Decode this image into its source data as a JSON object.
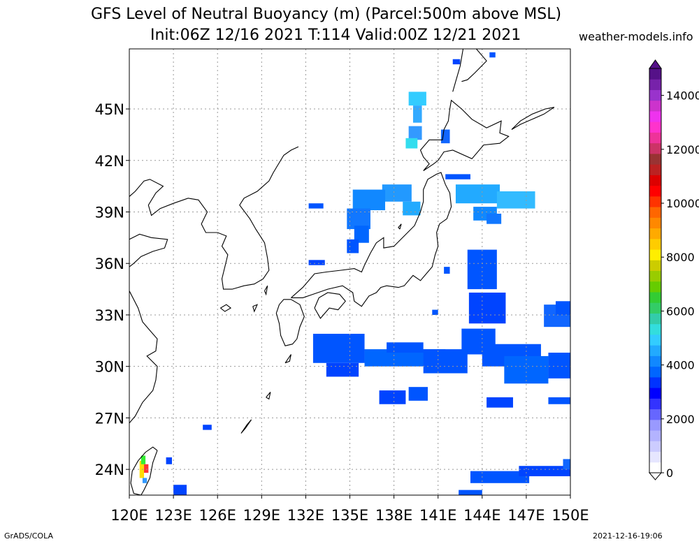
{
  "title": {
    "line1": "GFS Level of Neutral Buoyancy (m) (Parcel:500m above MSL)",
    "line2": "Init:06Z 12/16 2021 T:114 Valid:00Z 12/21 2021"
  },
  "site": "weather-models.info",
  "footer": {
    "left": "GrADS/COLA",
    "right": "2021-12-16-19:06"
  },
  "map": {
    "lon_range": [
      120,
      150
    ],
    "lat_range": [
      22.5,
      48.5
    ],
    "lon_ticks": [
      {
        "v": 120,
        "label": "120E"
      },
      {
        "v": 123,
        "label": "123E"
      },
      {
        "v": 126,
        "label": "126E"
      },
      {
        "v": 129,
        "label": "129E"
      },
      {
        "v": 132,
        "label": "132E"
      },
      {
        "v": 135,
        "label": "135E"
      },
      {
        "v": 138,
        "label": "138E"
      },
      {
        "v": 141,
        "label": "141E"
      },
      {
        "v": 144,
        "label": "144E"
      },
      {
        "v": 147,
        "label": "147E"
      },
      {
        "v": 150,
        "label": "150E"
      }
    ],
    "lat_ticks": [
      {
        "v": 24,
        "label": "24N"
      },
      {
        "v": 27,
        "label": "27N"
      },
      {
        "v": 30,
        "label": "30N"
      },
      {
        "v": 33,
        "label": "33N"
      },
      {
        "v": 36,
        "label": "36N"
      },
      {
        "v": 39,
        "label": "39N"
      },
      {
        "v": 42,
        "label": "42N"
      },
      {
        "v": 45,
        "label": "45N"
      }
    ],
    "grid": true,
    "coastlines": [
      [
        [
          131.5,
          42.8
        ],
        [
          131.0,
          42.6
        ],
        [
          130.5,
          42.3
        ],
        [
          129.8,
          41.3
        ],
        [
          129.5,
          40.8
        ],
        [
          128.7,
          40.2
        ],
        [
          127.8,
          39.8
        ],
        [
          127.5,
          39.4
        ],
        [
          128.2,
          38.6
        ],
        [
          128.6,
          38.0
        ],
        [
          129.2,
          37.2
        ],
        [
          129.4,
          36.3
        ],
        [
          129.5,
          35.6
        ],
        [
          129.1,
          35.1
        ],
        [
          128.5,
          34.8
        ],
        [
          127.8,
          34.7
        ],
        [
          127.0,
          34.5
        ],
        [
          126.4,
          34.5
        ],
        [
          126.3,
          35.1
        ],
        [
          126.5,
          35.8
        ],
        [
          126.7,
          36.5
        ],
        [
          126.3,
          37.0
        ],
        [
          126.6,
          37.6
        ],
        [
          126.0,
          37.8
        ],
        [
          125.2,
          37.8
        ],
        [
          124.9,
          38.3
        ],
        [
          125.3,
          39.0
        ],
        [
          124.7,
          39.7
        ],
        [
          124.0,
          39.8
        ],
        [
          123.0,
          39.5
        ],
        [
          122.1,
          39.2
        ],
        [
          121.5,
          38.8
        ],
        [
          121.3,
          39.4
        ],
        [
          121.8,
          40.1
        ],
        [
          122.3,
          40.5
        ],
        [
          121.4,
          40.9
        ],
        [
          121.0,
          40.8
        ],
        [
          120.4,
          40.2
        ],
        [
          120.0,
          39.9
        ]
      ],
      [
        [
          120.0,
          37.4
        ],
        [
          120.7,
          37.7
        ],
        [
          121.5,
          37.5
        ],
        [
          122.6,
          37.4
        ],
        [
          122.4,
          36.9
        ],
        [
          121.6,
          36.7
        ],
        [
          120.8,
          36.4
        ],
        [
          120.3,
          36.0
        ],
        [
          120.0,
          35.8
        ]
      ],
      [
        [
          120.0,
          34.4
        ],
        [
          120.6,
          33.4
        ],
        [
          120.9,
          32.6
        ],
        [
          121.4,
          32.1
        ],
        [
          121.9,
          31.6
        ],
        [
          121.8,
          30.9
        ],
        [
          121.2,
          30.6
        ],
        [
          121.9,
          30.0
        ],
        [
          121.8,
          29.2
        ],
        [
          121.6,
          28.6
        ],
        [
          120.9,
          27.9
        ],
        [
          120.4,
          27.1
        ],
        [
          120.0,
          26.7
        ]
      ],
      [
        [
          130.2,
          33.6
        ],
        [
          130.0,
          33.1
        ],
        [
          130.2,
          32.5
        ],
        [
          130.3,
          31.8
        ],
        [
          130.6,
          31.2
        ],
        [
          131.1,
          31.3
        ],
        [
          131.4,
          31.6
        ],
        [
          131.6,
          32.3
        ],
        [
          131.9,
          32.9
        ],
        [
          131.6,
          33.6
        ],
        [
          131.0,
          33.9
        ],
        [
          130.5,
          33.9
        ],
        [
          130.2,
          33.6
        ]
      ],
      [
        [
          131.0,
          34.0
        ],
        [
          131.8,
          34.6
        ],
        [
          132.6,
          35.4
        ],
        [
          133.4,
          35.5
        ],
        [
          134.4,
          35.6
        ],
        [
          135.3,
          35.7
        ],
        [
          135.8,
          35.5
        ],
        [
          136.0,
          35.9
        ],
        [
          136.4,
          36.6
        ],
        [
          136.8,
          37.2
        ],
        [
          137.3,
          37.5
        ],
        [
          137.3,
          36.9
        ],
        [
          138.0,
          37.0
        ],
        [
          138.7,
          37.6
        ],
        [
          139.4,
          38.2
        ],
        [
          139.8,
          39.0
        ],
        [
          140.0,
          39.6
        ],
        [
          140.0,
          40.3
        ],
        [
          140.3,
          40.9
        ],
        [
          140.9,
          41.2
        ],
        [
          141.2,
          41.3
        ],
        [
          141.5,
          40.6
        ],
        [
          141.8,
          40.1
        ],
        [
          141.9,
          39.3
        ],
        [
          141.6,
          38.6
        ],
        [
          141.1,
          38.3
        ],
        [
          140.9,
          37.8
        ],
        [
          141.0,
          37.0
        ],
        [
          140.8,
          36.5
        ],
        [
          140.6,
          35.8
        ],
        [
          140.1,
          35.3
        ],
        [
          139.8,
          35.0
        ],
        [
          139.3,
          35.3
        ],
        [
          138.7,
          34.7
        ],
        [
          138.3,
          34.6
        ],
        [
          137.5,
          34.7
        ],
        [
          137.1,
          34.6
        ],
        [
          136.8,
          34.3
        ],
        [
          136.3,
          34.1
        ],
        [
          135.8,
          33.5
        ],
        [
          135.3,
          33.8
        ],
        [
          135.2,
          34.3
        ],
        [
          134.5,
          34.7
        ],
        [
          133.5,
          34.5
        ],
        [
          132.5,
          34.2
        ],
        [
          131.8,
          34.0
        ],
        [
          131.0,
          34.0
        ]
      ],
      [
        [
          132.6,
          33.4
        ],
        [
          133.0,
          32.8
        ],
        [
          133.6,
          33.4
        ],
        [
          134.2,
          33.3
        ],
        [
          134.7,
          33.8
        ],
        [
          134.3,
          34.2
        ],
        [
          133.5,
          34.3
        ],
        [
          132.9,
          34.0
        ],
        [
          132.6,
          33.4
        ]
      ],
      [
        [
          140.0,
          41.4
        ],
        [
          140.4,
          41.8
        ],
        [
          140.0,
          42.2
        ],
        [
          139.8,
          42.6
        ],
        [
          140.4,
          43.2
        ],
        [
          141.3,
          43.2
        ],
        [
          141.4,
          43.8
        ],
        [
          141.7,
          44.3
        ],
        [
          141.8,
          45.0
        ],
        [
          141.9,
          45.5
        ],
        [
          142.6,
          45.0
        ],
        [
          143.3,
          44.4
        ],
        [
          144.3,
          43.9
        ],
        [
          145.3,
          44.3
        ],
        [
          145.2,
          43.6
        ],
        [
          145.8,
          43.4
        ],
        [
          145.2,
          43.0
        ],
        [
          144.1,
          42.9
        ],
        [
          143.3,
          42.1
        ],
        [
          142.0,
          42.6
        ],
        [
          141.4,
          42.5
        ],
        [
          141.0,
          42.0
        ],
        [
          140.7,
          41.8
        ],
        [
          140.0,
          41.4
        ]
      ],
      [
        [
          142.0,
          46.0
        ],
        [
          142.2,
          46.6
        ],
        [
          142.5,
          47.5
        ],
        [
          142.7,
          48.5
        ]
      ],
      [
        [
          143.6,
          48.5
        ],
        [
          144.3,
          47.8
        ],
        [
          143.5,
          47.1
        ],
        [
          143.0,
          46.7
        ],
        [
          142.6,
          46.6
        ]
      ],
      [
        [
          146.0,
          43.8
        ],
        [
          146.6,
          44.1
        ],
        [
          147.4,
          44.4
        ],
        [
          148.2,
          44.7
        ],
        [
          148.9,
          45.1
        ],
        [
          148.3,
          45.0
        ],
        [
          147.4,
          44.7
        ],
        [
          146.6,
          44.3
        ],
        [
          146.0,
          43.8
        ]
      ],
      [
        [
          120.0,
          34.4
        ],
        [
          119.8,
          34.5
        ]
      ],
      [
        [
          121.9,
          25.1
        ],
        [
          121.6,
          24.4
        ],
        [
          121.4,
          23.5
        ],
        [
          121.0,
          22.8
        ],
        [
          120.8,
          22.5
        ],
        [
          120.3,
          22.6
        ],
        [
          120.1,
          23.2
        ],
        [
          120.2,
          23.9
        ],
        [
          120.6,
          24.5
        ],
        [
          121.1,
          25.0
        ],
        [
          121.6,
          25.3
        ],
        [
          121.9,
          25.1
        ]
      ],
      [
        [
          127.6,
          26.1
        ],
        [
          128.0,
          26.6
        ],
        [
          128.3,
          26.9
        ],
        [
          127.9,
          26.4
        ],
        [
          127.6,
          26.1
        ]
      ],
      [
        [
          129.3,
          28.2
        ],
        [
          129.6,
          28.5
        ],
        [
          129.5,
          28.1
        ],
        [
          129.3,
          28.2
        ]
      ],
      [
        [
          130.6,
          30.2
        ],
        [
          131.0,
          30.7
        ],
        [
          130.9,
          30.3
        ],
        [
          130.6,
          30.2
        ]
      ],
      [
        [
          128.4,
          33.5
        ],
        [
          128.7,
          33.6
        ],
        [
          128.5,
          33.2
        ],
        [
          128.4,
          33.5
        ]
      ],
      [
        [
          126.2,
          33.4
        ],
        [
          126.6,
          33.6
        ],
        [
          126.9,
          33.4
        ],
        [
          126.5,
          33.2
        ],
        [
          126.2,
          33.4
        ]
      ],
      [
        [
          138.4,
          38.0
        ],
        [
          138.5,
          38.3
        ],
        [
          138.3,
          38.1
        ],
        [
          138.4,
          38.0
        ]
      ],
      [
        [
          129.2,
          34.4
        ],
        [
          129.4,
          34.7
        ],
        [
          129.3,
          34.2
        ],
        [
          129.2,
          34.4
        ]
      ]
    ],
    "buoyancy_cells": [
      [
        139.0,
        45.2,
        1.2,
        0.8,
        "#33ccff"
      ],
      [
        139.3,
        44.2,
        0.6,
        1.0,
        "#33aaff"
      ],
      [
        139.0,
        43.2,
        0.9,
        0.8,
        "#3399ff"
      ],
      [
        138.8,
        42.7,
        0.8,
        0.6,
        "#33ddee"
      ],
      [
        144.5,
        48.0,
        0.4,
        0.3,
        "#0055ff"
      ],
      [
        142.0,
        47.6,
        0.5,
        0.3,
        "#0044ff"
      ],
      [
        141.2,
        43.0,
        0.6,
        0.8,
        "#1166ff"
      ],
      [
        137.2,
        39.6,
        2.0,
        1.0,
        "#2299ff"
      ],
      [
        135.2,
        39.1,
        2.2,
        1.2,
        "#1188ff"
      ],
      [
        134.8,
        38.0,
        1.6,
        1.2,
        "#1177ff"
      ],
      [
        135.3,
        37.2,
        1.0,
        1.0,
        "#0066ff"
      ],
      [
        134.8,
        36.6,
        0.8,
        0.8,
        "#0055ff"
      ],
      [
        138.6,
        38.8,
        1.2,
        0.8,
        "#22aaff"
      ],
      [
        132.2,
        39.2,
        1.0,
        0.3,
        "#0055ff"
      ],
      [
        132.2,
        35.9,
        1.1,
        0.3,
        "#0044ff"
      ],
      [
        141.5,
        40.9,
        1.7,
        0.3,
        "#0055ff"
      ],
      [
        142.2,
        39.5,
        3.0,
        1.1,
        "#22aaff"
      ],
      [
        145.0,
        39.2,
        2.6,
        1.0,
        "#33bbff"
      ],
      [
        143.4,
        38.5,
        1.6,
        0.8,
        "#1188ff"
      ],
      [
        144.3,
        38.3,
        1.0,
        0.6,
        "#1177ff"
      ],
      [
        143.0,
        34.5,
        2.0,
        2.3,
        "#0055ff"
      ],
      [
        143.1,
        32.5,
        2.5,
        1.8,
        "#0044ff"
      ],
      [
        142.6,
        30.7,
        2.3,
        1.5,
        "#0055ff"
      ],
      [
        132.5,
        30.2,
        3.5,
        1.7,
        "#0055ff"
      ],
      [
        133.4,
        29.4,
        2.2,
        0.8,
        "#0044ff"
      ],
      [
        136.0,
        30.0,
        5.5,
        1.0,
        "#0066ff"
      ],
      [
        137.5,
        30.8,
        2.5,
        0.6,
        "#0055ff"
      ],
      [
        140.0,
        29.6,
        3.0,
        1.4,
        "#0055ff"
      ],
      [
        144.0,
        30.0,
        4.0,
        1.3,
        "#0055ff"
      ],
      [
        145.5,
        29.0,
        3.0,
        1.6,
        "#0066ff"
      ],
      [
        148.5,
        29.3,
        1.5,
        1.5,
        "#0055ff"
      ],
      [
        148.2,
        32.3,
        1.8,
        1.3,
        "#1166ff"
      ],
      [
        149.0,
        33.0,
        1.0,
        0.8,
        "#0055ff"
      ],
      [
        137.0,
        27.8,
        1.8,
        0.8,
        "#0044ff"
      ],
      [
        139.0,
        28.0,
        1.3,
        0.8,
        "#0055ff"
      ],
      [
        144.3,
        27.6,
        1.8,
        0.6,
        "#0044ff"
      ],
      [
        148.5,
        27.8,
        1.5,
        0.4,
        "#0055ff"
      ],
      [
        143.2,
        23.2,
        4.0,
        0.7,
        "#0055ff"
      ],
      [
        146.5,
        23.6,
        3.5,
        0.6,
        "#0044ff"
      ],
      [
        149.5,
        24.0,
        0.5,
        0.6,
        "#1166ff"
      ],
      [
        142.4,
        22.5,
        1.6,
        0.3,
        "#0055ff"
      ],
      [
        125.0,
        26.3,
        0.6,
        0.3,
        "#0044ff"
      ],
      [
        122.5,
        24.3,
        0.4,
        0.4,
        "#0044ff"
      ],
      [
        123.0,
        22.5,
        0.9,
        0.6,
        "#0044ff"
      ],
      [
        141.4,
        35.4,
        0.4,
        0.4,
        "#0055ff"
      ],
      [
        140.6,
        33.0,
        0.4,
        0.3,
        "#0055ff"
      ],
      [
        120.7,
        23.5,
        0.3,
        1.0,
        "#ffdd00"
      ],
      [
        120.8,
        24.3,
        0.3,
        0.5,
        "#33ee33"
      ],
      [
        121.0,
        23.8,
        0.3,
        0.5,
        "#ff3333"
      ],
      [
        120.9,
        23.2,
        0.3,
        0.3,
        "#3399ff"
      ]
    ]
  },
  "colorbar": {
    "ticks": [
      {
        "v": 0,
        "label": "0"
      },
      {
        "v": 2000,
        "label": "2000"
      },
      {
        "v": 4000,
        "label": "4000"
      },
      {
        "v": 6000,
        "label": "6000"
      },
      {
        "v": 8000,
        "label": "8000"
      },
      {
        "v": 10000,
        "label": "10000"
      },
      {
        "v": 12000,
        "label": "12000"
      },
      {
        "v": 14000,
        "label": "14000"
      }
    ],
    "range": [
      0,
      15000
    ],
    "colors": [
      "#ffffff",
      "#e6e6ff",
      "#ccccff",
      "#b3b3ff",
      "#9999ff",
      "#6666ff",
      "#3333ff",
      "#0000ff",
      "#0033ff",
      "#0066ff",
      "#1188ff",
      "#22aaff",
      "#33ccff",
      "#33dddd",
      "#33ccaa",
      "#33cc66",
      "#33cc33",
      "#66cc00",
      "#99cc00",
      "#cccc00",
      "#ffee00",
      "#ffcc00",
      "#ffaa00",
      "#ff8800",
      "#ff6600",
      "#ff3300",
      "#ff0000",
      "#dd0000",
      "#bb2222",
      "#993333",
      "#cc3366",
      "#ee3399",
      "#ff33cc",
      "#ee33ee",
      "#cc33cc",
      "#9933cc",
      "#7722aa",
      "#551188"
    ]
  }
}
